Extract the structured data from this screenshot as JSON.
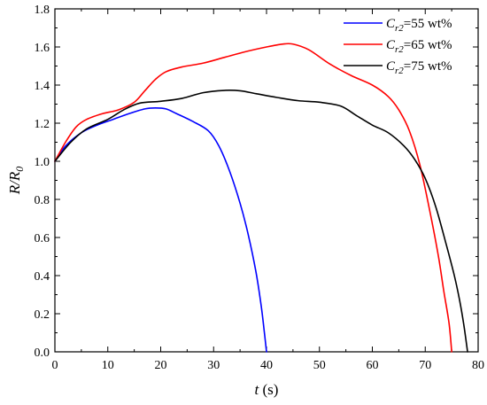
{
  "chart_data": {
    "type": "line",
    "xlabel": {
      "var": "t",
      "unit": " (s)"
    },
    "ylabel": {
      "base": "R/R",
      "sub": "0"
    },
    "xlim": [
      0,
      80
    ],
    "ylim": [
      0,
      1.8
    ],
    "xticks": [
      "0",
      "10",
      "20",
      "30",
      "40",
      "50",
      "60",
      "70",
      "80"
    ],
    "yticks": [
      "0.0",
      "0.2",
      "0.4",
      "0.6",
      "0.8",
      "1.0",
      "1.2",
      "1.4",
      "1.6",
      "1.8"
    ],
    "grid": false,
    "legend_position": "top-right",
    "series": [
      {
        "name": "Cr2=55 wt%",
        "legend": {
          "var": "C",
          "sub": "r2",
          "rest": "=55 wt%"
        },
        "color": "#0000ff",
        "points": [
          [
            0,
            1.0
          ],
          [
            2,
            1.08
          ],
          [
            5,
            1.15
          ],
          [
            8,
            1.19
          ],
          [
            11,
            1.22
          ],
          [
            14,
            1.25
          ],
          [
            17,
            1.275
          ],
          [
            19,
            1.28
          ],
          [
            21,
            1.275
          ],
          [
            23,
            1.25
          ],
          [
            26,
            1.21
          ],
          [
            29,
            1.16
          ],
          [
            31,
            1.08
          ],
          [
            33,
            0.95
          ],
          [
            35,
            0.78
          ],
          [
            36.5,
            0.62
          ],
          [
            38,
            0.42
          ],
          [
            39,
            0.24
          ],
          [
            39.6,
            0.1
          ],
          [
            40,
            0.0
          ]
        ]
      },
      {
        "name": "Cr2=65 wt%",
        "legend": {
          "var": "C",
          "sub": "r2",
          "rest": "=65 wt%"
        },
        "color": "#ff0000",
        "points": [
          [
            0,
            1.0
          ],
          [
            2,
            1.1
          ],
          [
            4,
            1.18
          ],
          [
            6,
            1.22
          ],
          [
            9,
            1.25
          ],
          [
            12,
            1.27
          ],
          [
            15,
            1.31
          ],
          [
            17,
            1.37
          ],
          [
            19,
            1.43
          ],
          [
            21,
            1.47
          ],
          [
            24,
            1.495
          ],
          [
            28,
            1.515
          ],
          [
            32,
            1.545
          ],
          [
            36,
            1.575
          ],
          [
            40,
            1.6
          ],
          [
            43,
            1.615
          ],
          [
            45,
            1.615
          ],
          [
            48,
            1.585
          ],
          [
            52,
            1.51
          ],
          [
            56,
            1.45
          ],
          [
            60,
            1.4
          ],
          [
            63,
            1.34
          ],
          [
            65,
            1.27
          ],
          [
            67,
            1.16
          ],
          [
            69,
            0.98
          ],
          [
            71,
            0.72
          ],
          [
            72.5,
            0.5
          ],
          [
            73.5,
            0.32
          ],
          [
            74.5,
            0.15
          ],
          [
            75,
            0.0
          ]
        ]
      },
      {
        "name": "Cr2=75 wt%",
        "legend": {
          "var": "C",
          "sub": "r2",
          "rest": "=75 wt%"
        },
        "color": "#000000",
        "points": [
          [
            0,
            1.0
          ],
          [
            3,
            1.1
          ],
          [
            6,
            1.17
          ],
          [
            10,
            1.22
          ],
          [
            13,
            1.27
          ],
          [
            16,
            1.305
          ],
          [
            20,
            1.315
          ],
          [
            24,
            1.33
          ],
          [
            28,
            1.36
          ],
          [
            32,
            1.372
          ],
          [
            35,
            1.37
          ],
          [
            38,
            1.355
          ],
          [
            42,
            1.335
          ],
          [
            46,
            1.318
          ],
          [
            50,
            1.31
          ],
          [
            54,
            1.29
          ],
          [
            57,
            1.24
          ],
          [
            60,
            1.19
          ],
          [
            63,
            1.15
          ],
          [
            66,
            1.08
          ],
          [
            68,
            1.01
          ],
          [
            70,
            0.91
          ],
          [
            72,
            0.76
          ],
          [
            74,
            0.56
          ],
          [
            75.5,
            0.4
          ],
          [
            76.5,
            0.27
          ],
          [
            77.3,
            0.14
          ],
          [
            78,
            0.0
          ]
        ]
      }
    ]
  }
}
